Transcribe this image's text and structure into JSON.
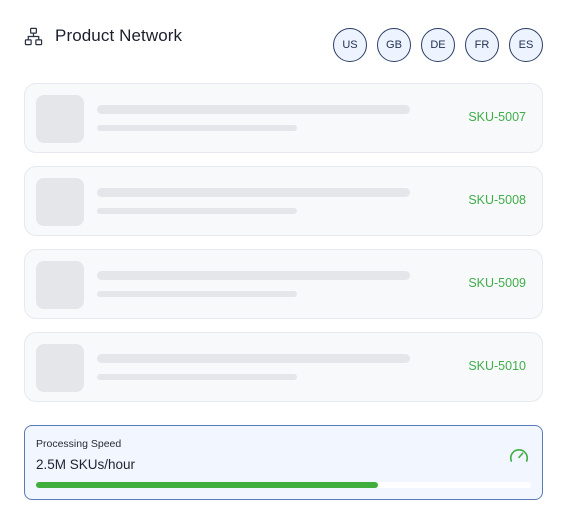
{
  "header": {
    "title": "Product Network",
    "icon": "network-icon"
  },
  "regions": [
    {
      "label": "US"
    },
    {
      "label": "GB"
    },
    {
      "label": "DE"
    },
    {
      "label": "FR"
    },
    {
      "label": "ES"
    }
  ],
  "products": [
    {
      "sku": "SKU-5007"
    },
    {
      "sku": "SKU-5008"
    },
    {
      "sku": "SKU-5009"
    },
    {
      "sku": "SKU-5010"
    }
  ],
  "processing": {
    "label": "Processing Speed",
    "value": "2.5M SKUs/hour",
    "icon": "speedometer-icon",
    "progress": 0.69
  },
  "colors": {
    "accent_green": "#3fae49",
    "card_border": "#5b7ab8",
    "chip_border": "#2c3e66"
  }
}
